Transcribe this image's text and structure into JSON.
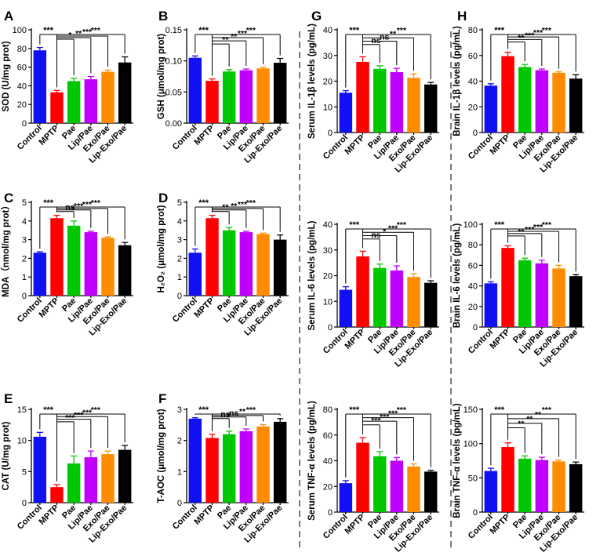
{
  "figure": {
    "categories": [
      "Control",
      "MPTP",
      "Pae",
      "Lip/Pae",
      "Exo/Pae",
      "Lip-Exo/Pae"
    ],
    "colors": [
      "#1010f0",
      "#ff0000",
      "#00c800",
      "#c000ff",
      "#ff8c00",
      "#000000"
    ]
  },
  "chart_data": [
    {
      "panel": "A",
      "type": "bar",
      "ylabel": "SOD (U/mg prot)",
      "ylim": [
        0,
        100
      ],
      "yticks": [
        0,
        20,
        40,
        60,
        80,
        100
      ],
      "values": [
        78,
        33,
        45,
        47,
        55,
        65
      ],
      "errors": [
        3,
        2,
        3,
        3,
        2,
        6
      ],
      "comparisons": [
        "***",
        "*",
        "**",
        "***",
        "***"
      ]
    },
    {
      "panel": "B",
      "type": "bar",
      "ylabel": "GSH (μmol/mg prot)",
      "ylim": [
        0,
        0.15
      ],
      "yticks": [
        "0.00",
        "0.05",
        "0.10",
        "0.15"
      ],
      "values": [
        0.105,
        0.068,
        0.083,
        0.085,
        0.088,
        0.097
      ],
      "errors": [
        0.003,
        0.003,
        0.003,
        0.002,
        0.002,
        0.007
      ],
      "comparisons": [
        "***",
        "**",
        "**",
        "***",
        "***"
      ]
    },
    {
      "panel": "C",
      "type": "bar",
      "ylabel": "MDA（nmol/mg prot）",
      "ylim": [
        0,
        5
      ],
      "yticks": [
        0,
        1,
        2,
        3,
        4,
        5
      ],
      "values": [
        2.3,
        4.15,
        3.75,
        3.4,
        3.1,
        2.7
      ],
      "errors": [
        0.05,
        0.15,
        0.25,
        0.05,
        0.05,
        0.15
      ],
      "comparisons": [
        "***",
        "ns",
        "***",
        "***",
        "***"
      ]
    },
    {
      "panel": "D",
      "type": "bar",
      "ylabel": "H₂O₂ (μmol/mg prot)",
      "ylim": [
        0,
        5
      ],
      "yticks": [
        0,
        1,
        2,
        3,
        4,
        5
      ],
      "values": [
        2.3,
        4.15,
        3.5,
        3.4,
        3.3,
        3.0
      ],
      "errors": [
        0.2,
        0.15,
        0.15,
        0.05,
        0.05,
        0.25
      ],
      "comparisons": [
        "***",
        "**",
        "**",
        "***",
        "***"
      ]
    },
    {
      "panel": "E",
      "type": "bar",
      "ylabel": "CAT (U/mg prot)",
      "ylim": [
        0,
        15
      ],
      "yticks": [
        0,
        5,
        10,
        15
      ],
      "values": [
        10.6,
        2.5,
        6.3,
        7.3,
        7.8,
        8.5
      ],
      "errors": [
        0.7,
        0.4,
        1.2,
        1.0,
        0.5,
        0.7
      ],
      "comparisons": [
        "***",
        "***",
        "***",
        "***",
        "***"
      ]
    },
    {
      "panel": "F",
      "type": "bar",
      "ylabel": "T-AOC (μmol/mg prot)",
      "ylim": [
        0,
        3
      ],
      "yticks": [
        0,
        1,
        2,
        3
      ],
      "values": [
        2.7,
        2.08,
        2.2,
        2.3,
        2.45,
        2.6
      ],
      "errors": [
        0.03,
        0.12,
        0.1,
        0.07,
        0.06,
        0.1
      ],
      "comparisons": [
        "***",
        "ns",
        "ns",
        "**",
        "***"
      ]
    },
    {
      "panel": "G",
      "type": "bar",
      "ylabel": "Serum IL-1β levels (pg/mL)",
      "ylim": [
        0,
        40
      ],
      "yticks": [
        0,
        10,
        20,
        30,
        40
      ],
      "values": [
        15.5,
        27.5,
        24.8,
        23.5,
        21.3,
        18.7
      ],
      "errors": [
        0.8,
        2.0,
        1.2,
        1.5,
        1.5,
        0.8
      ],
      "comparisons": [
        "***",
        "ns",
        "ns",
        "**",
        "***"
      ]
    },
    {
      "panel": "",
      "type": "bar",
      "ylabel": "Serum IL-6 levels (pg/mL)",
      "ylim": [
        0,
        40
      ],
      "yticks": [
        0,
        10,
        20,
        30,
        40
      ],
      "values": [
        14.5,
        27.5,
        23,
        22,
        19.5,
        17.2
      ],
      "errors": [
        1.2,
        2.0,
        1.5,
        1.8,
        1.2,
        0.8
      ],
      "comparisons": [
        "***",
        "ns",
        "*",
        "***",
        "***"
      ]
    },
    {
      "panel": "",
      "type": "bar",
      "ylabel": "Serum TNF-α levels (pg/mL)",
      "ylim": [
        0,
        80
      ],
      "yticks": [
        0,
        20,
        40,
        60,
        80
      ],
      "values": [
        22.5,
        54,
        43.5,
        40,
        35.5,
        31.5
      ],
      "errors": [
        2.0,
        4.0,
        3.5,
        2.5,
        2.0,
        1.0
      ],
      "comparisons": [
        "***",
        "***",
        "***",
        "***",
        "***"
      ]
    },
    {
      "panel": "H",
      "type": "bar",
      "ylabel": "Brain IL-1β levels (pg/mL)",
      "ylim": [
        0,
        80
      ],
      "yticks": [
        0,
        20,
        40,
        60,
        80
      ],
      "values": [
        36.5,
        59.5,
        51,
        48.5,
        46.5,
        42
      ],
      "errors": [
        1.5,
        3.0,
        2.0,
        1.0,
        0.8,
        3.0
      ],
      "comparisons": [
        "***",
        "**",
        "***",
        "***",
        "***"
      ]
    },
    {
      "panel": "",
      "type": "bar",
      "ylabel": "Brain IL-6 levels (pg/mL)",
      "ylim": [
        0,
        100
      ],
      "yticks": [
        0,
        20,
        40,
        60,
        80,
        100
      ],
      "values": [
        42.5,
        77,
        65,
        62,
        57,
        49.5
      ],
      "errors": [
        1.5,
        2.0,
        2.0,
        3.0,
        3.0,
        1.5
      ],
      "comparisons": [
        "***",
        "**",
        "***",
        "***",
        "***"
      ]
    },
    {
      "panel": "",
      "type": "bar",
      "ylabel": "Brain TNF-α levels (pg/mL)",
      "ylim": [
        0,
        150
      ],
      "yticks": [
        0,
        50,
        100,
        150
      ],
      "values": [
        60,
        95,
        78,
        76,
        74,
        70
      ],
      "errors": [
        4.0,
        6.0,
        4.0,
        4.0,
        2.0,
        3.0
      ],
      "comparisons": [
        "***",
        "**",
        "**",
        "**",
        "***"
      ]
    }
  ]
}
